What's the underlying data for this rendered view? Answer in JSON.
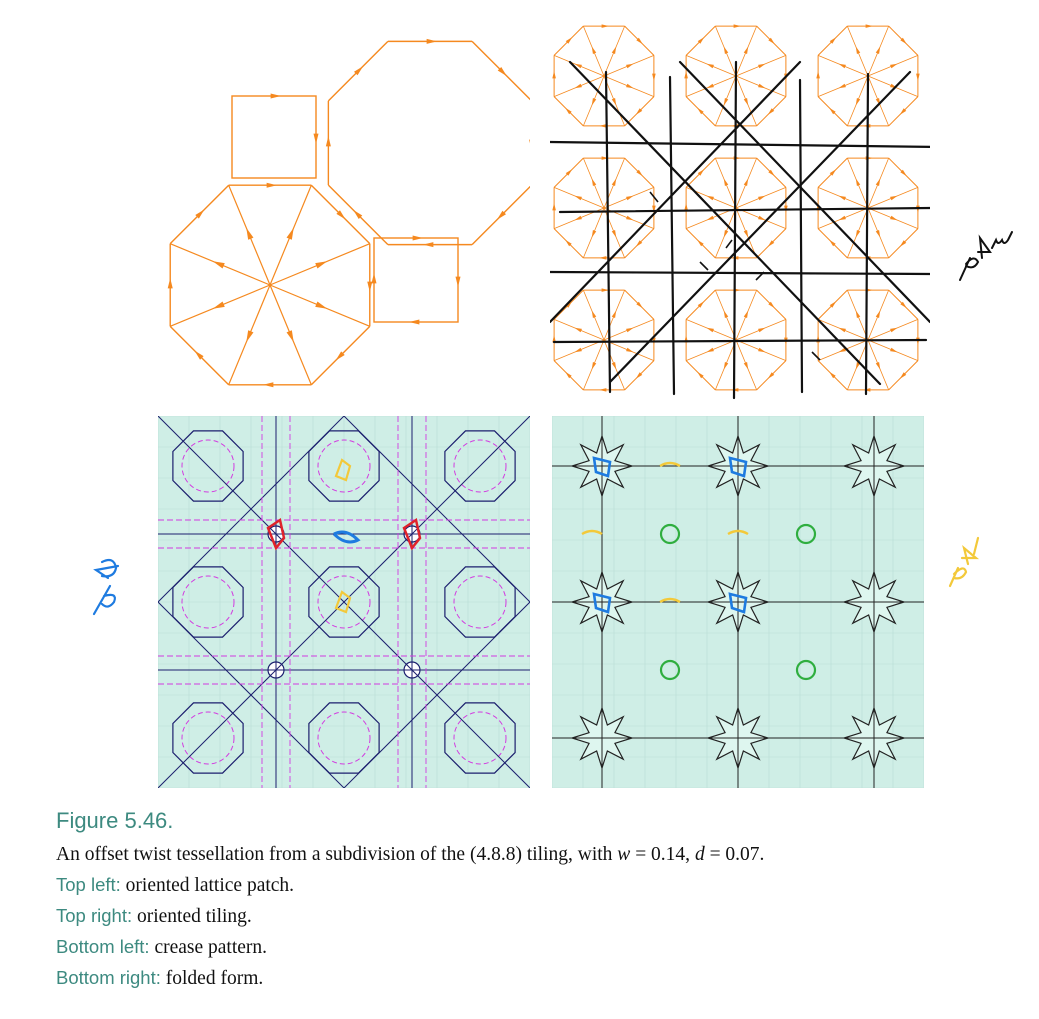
{
  "figure": {
    "number": "Figure 5.46.",
    "description_before_w": "An offset twist tessellation from a subdivision of the (4.8.8) tiling, with ",
    "w_symbol": "w",
    "w_value": " = 0.14, ",
    "d_symbol": "d",
    "d_value": " = 0.07.",
    "items": [
      {
        "label": "Top left:",
        "text": " oriented lattice patch."
      },
      {
        "label": "Top right:",
        "text": " oriented tiling."
      },
      {
        "label": "Bottom left:",
        "text": " crease pattern."
      },
      {
        "label": "Bottom right:",
        "text": " folded form."
      }
    ]
  },
  "annotations": {
    "top_right_handwritten": "p4m",
    "bottom_left_handwritten": "p4g",
    "bottom_right_handwritten": "p4"
  },
  "colors": {
    "orange": "#f5891f",
    "teal_paper": "#cfeee6",
    "navy_crease": "#1c1f6e",
    "magenta_dash": "#d23be0",
    "caption_label": "#3d8a80",
    "hand_blue": "#1e7be0",
    "hand_yellow": "#f3c93a",
    "hand_red": "#e0232b",
    "hand_green": "#2fae3f"
  }
}
